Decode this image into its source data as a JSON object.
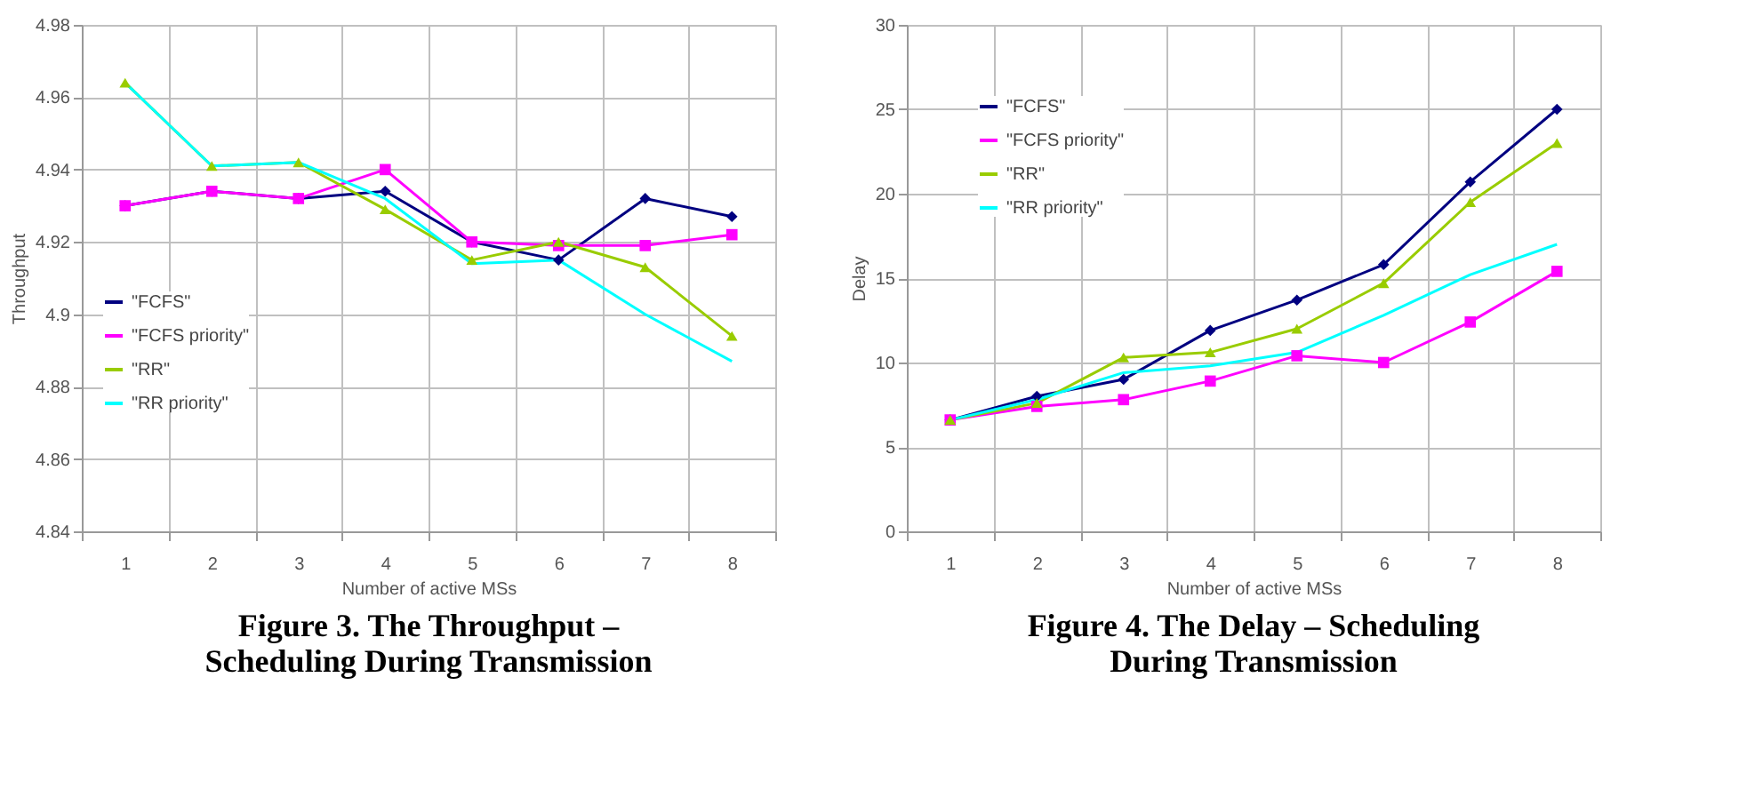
{
  "chart_data": [
    {
      "type": "line",
      "title": "Figure 3. The Throughput – Scheduling During Transmission",
      "xlabel": "Number of active MSs",
      "ylabel": "Throughput",
      "categories": [
        "1",
        "2",
        "3",
        "4",
        "5",
        "6",
        "7",
        "8"
      ],
      "ylim": [
        4.84,
        4.98
      ],
      "yticks": [
        4.84,
        4.86,
        4.88,
        4.9,
        4.92,
        4.94,
        4.96,
        4.98
      ],
      "grid": true,
      "legend": "left",
      "series": [
        {
          "name": "\"FCFS\"",
          "color": "#000080",
          "marker": "diamond",
          "values": [
            4.93,
            4.934,
            4.932,
            4.934,
            4.92,
            4.915,
            4.932,
            4.927
          ]
        },
        {
          "name": "\"FCFS priority\"",
          "color": "#ff00ff",
          "marker": "square",
          "values": [
            4.93,
            4.934,
            4.932,
            4.94,
            4.92,
            4.919,
            4.919,
            4.922
          ]
        },
        {
          "name": "\"RR\"",
          "color": "#99cc00",
          "marker": "triangle",
          "values": [
            4.964,
            4.941,
            4.942,
            4.929,
            4.915,
            4.92,
            4.913,
            4.894
          ]
        },
        {
          "name": "\"RR priority\"",
          "color": "#00ffff",
          "marker": "none",
          "values": [
            4.964,
            4.941,
            4.942,
            4.932,
            4.914,
            4.915,
            4.9,
            4.887
          ]
        }
      ]
    },
    {
      "type": "line",
      "title": "Figure 4. The Delay – Scheduling During Transmission",
      "xlabel": "Number of active MSs",
      "ylabel": "Delay",
      "categories": [
        "1",
        "2",
        "3",
        "4",
        "5",
        "6",
        "7",
        "8"
      ],
      "ylim": [
        0,
        30
      ],
      "yticks": [
        0,
        5,
        10,
        15,
        20,
        25,
        30
      ],
      "grid": true,
      "legend": "top left",
      "series": [
        {
          "name": "\"FCFS\"",
          "color": "#000080",
          "marker": "diamond",
          "values": [
            6.6,
            8.0,
            9.0,
            11.9,
            13.7,
            15.8,
            20.7,
            25.0
          ]
        },
        {
          "name": "\"FCFS priority\"",
          "color": "#ff00ff",
          "marker": "square",
          "values": [
            6.6,
            7.4,
            7.8,
            8.9,
            10.4,
            10.0,
            12.4,
            15.4
          ]
        },
        {
          "name": "\"RR\"",
          "color": "#99cc00",
          "marker": "triangle",
          "values": [
            6.6,
            7.6,
            10.3,
            10.6,
            12.0,
            14.7,
            19.5,
            23.0
          ]
        },
        {
          "name": "\"RR priority\"",
          "color": "#00ffff",
          "marker": "none",
          "values": [
            6.6,
            7.8,
            9.4,
            9.8,
            10.6,
            12.8,
            15.2,
            17.0
          ]
        }
      ]
    }
  ]
}
